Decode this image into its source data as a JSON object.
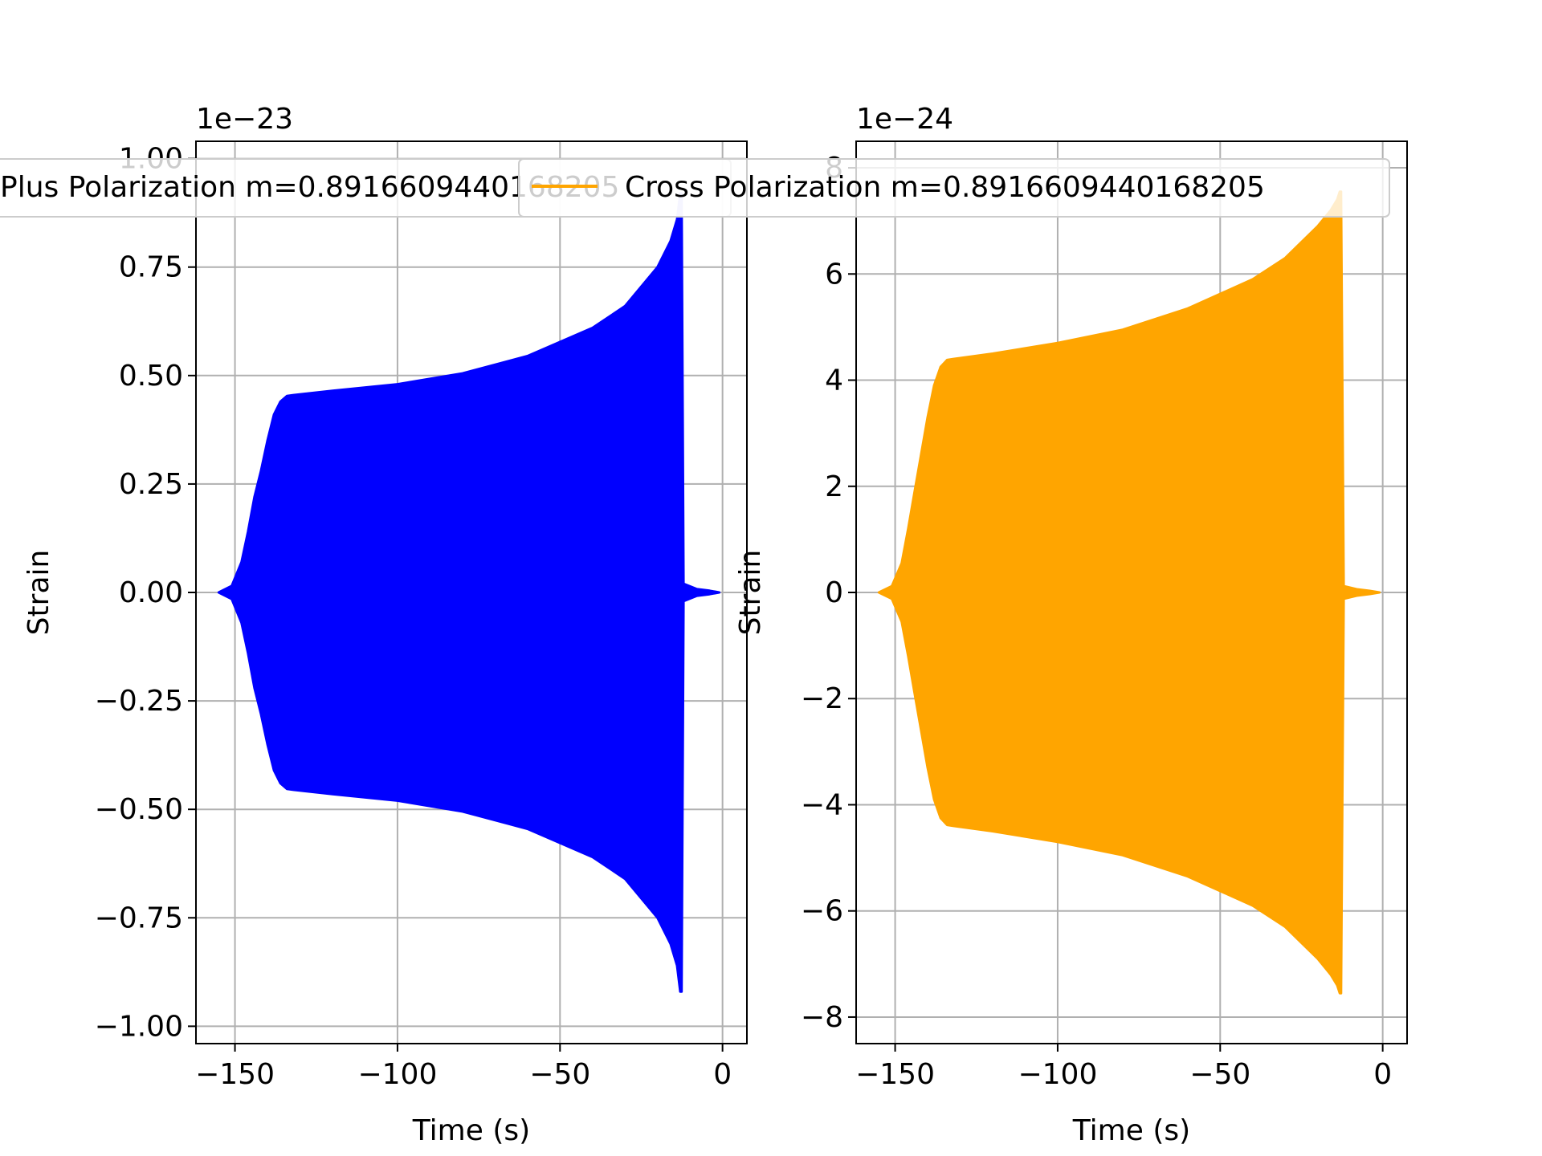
{
  "chart_data": [
    {
      "type": "line",
      "panel": "left",
      "xlabel": "Time (s)",
      "ylabel": "Strain",
      "offset_label": "1e−23",
      "xlim": [
        -162,
        7.5
      ],
      "ylim": [
        -1.04,
        1.04
      ],
      "xticks": [
        -150,
        -100,
        -50,
        0
      ],
      "xtick_labels": [
        "−150",
        "−100",
        "−50",
        "0"
      ],
      "yticks": [
        -1.0,
        -0.75,
        -0.5,
        -0.25,
        0.0,
        0.25,
        0.5,
        0.75,
        1.0
      ],
      "ytick_labels": [
        "−1.00",
        "−0.75",
        "−0.50",
        "−0.25",
        "0.00",
        "0.25",
        "0.50",
        "0.75",
        "1.00"
      ],
      "grid": true,
      "legend_position": "top-center",
      "series": [
        {
          "name": "Plus Polarization m=0.8916609440168205",
          "color": "#0000ff",
          "description": "oscillating strain, symmetric envelope",
          "envelope": {
            "x": [
              -155,
              -151,
              -148,
              -146,
              -144,
              -142,
              -140,
              -138,
              -136,
              -134,
              -132,
              -120,
              -100,
              -80,
              -60,
              -40,
              -30,
              -20,
              -16,
              -14,
              -13,
              -12.6,
              -12,
              -8,
              -4,
              -1
            ],
            "y": [
              0.0,
              0.015,
              0.07,
              0.14,
              0.22,
              0.28,
              0.35,
              0.41,
              0.44,
              0.453,
              0.455,
              0.465,
              0.48,
              0.505,
              0.545,
              0.61,
              0.66,
              0.75,
              0.81,
              0.86,
              0.92,
              0.92,
              0.02,
              0.008,
              0.004,
              0.0
            ]
          }
        }
      ]
    },
    {
      "type": "line",
      "panel": "right",
      "xlabel": "Time (s)",
      "ylabel": "Strain",
      "offset_label": "1e−24",
      "xlim": [
        -162,
        7.5
      ],
      "ylim": [
        -8.5,
        8.5
      ],
      "xticks": [
        -150,
        -100,
        -50,
        0
      ],
      "xtick_labels": [
        "−150",
        "−100",
        "−50",
        "0"
      ],
      "yticks": [
        -8,
        -6,
        -4,
        -2,
        0,
        2,
        4,
        6,
        8
      ],
      "ytick_labels": [
        "−8",
        "−6",
        "−4",
        "−2",
        "0",
        "2",
        "4",
        "6",
        "8"
      ],
      "grid": true,
      "legend_position": "top-center",
      "series": [
        {
          "name": "Cross Polarization m=0.8916609440168205",
          "color": "#ffa500",
          "description": "oscillating strain, symmetric envelope",
          "envelope": {
            "x": [
              -155,
              -151,
              -148,
              -146,
              -144,
              -142,
              -140,
              -138,
              -136,
              -134,
              -132,
              -120,
              -100,
              -80,
              -60,
              -40,
              -30,
              -20,
              -16,
              -14,
              -13.2,
              -12.8,
              -12,
              -8,
              -4,
              -1
            ],
            "y": [
              0.0,
              0.12,
              0.55,
              1.2,
              1.9,
              2.6,
              3.3,
              3.9,
              4.25,
              4.38,
              4.4,
              4.5,
              4.7,
              4.95,
              5.35,
              5.9,
              6.3,
              6.9,
              7.2,
              7.4,
              7.55,
              7.55,
              0.12,
              0.06,
              0.03,
              0.0
            ]
          }
        }
      ]
    }
  ]
}
